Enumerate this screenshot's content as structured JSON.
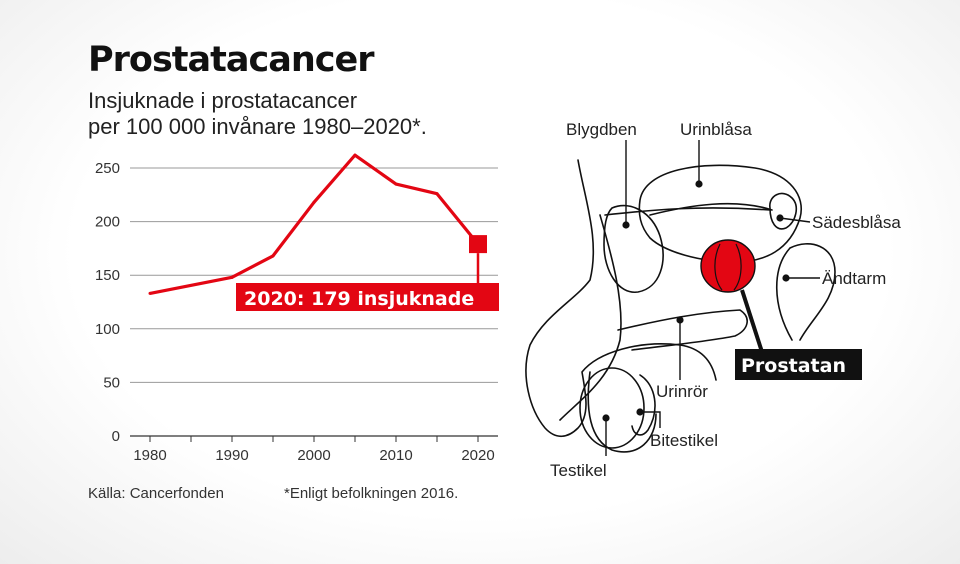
{
  "title": "Prostatacancer",
  "subtitle": [
    "Insjuknade i prostatacancer",
    "per 100 000 invånare 1980–2020*."
  ],
  "source": "Källa: Cancerfonden",
  "note": "*Enligt befolkningen 2016.",
  "colors": {
    "accent": "#e30613",
    "gridline": "#999999",
    "text": "#111111"
  },
  "chart_data": {
    "type": "line",
    "x": [
      1980,
      1990,
      1995,
      2000,
      2005,
      2010,
      2015,
      2020
    ],
    "series": [
      {
        "values": [
          133,
          148,
          168,
          218,
          262,
          235,
          226,
          179
        ]
      }
    ],
    "xticks": [
      "1980",
      "1990",
      "2000",
      "2010",
      "2020"
    ],
    "yticks": [
      "0",
      "50",
      "100",
      "150",
      "200",
      "250"
    ],
    "xlim": [
      1980,
      2020
    ],
    "ylim": [
      0,
      250
    ],
    "grid": true,
    "annotation": {
      "text": "2020: 179 insjuknade",
      "x": 2020,
      "y": 179
    }
  },
  "diagram": {
    "labels": {
      "blygdben": "Blygdben",
      "urinblasa": "Urinblåsa",
      "sadesblasa": "Sädesblåsa",
      "andtarm": "Ändtarm",
      "prostatan": "Prostatan",
      "urinror": "Urinrör",
      "bitestikel": "Bitestikel",
      "testikel": "Testikel"
    }
  }
}
